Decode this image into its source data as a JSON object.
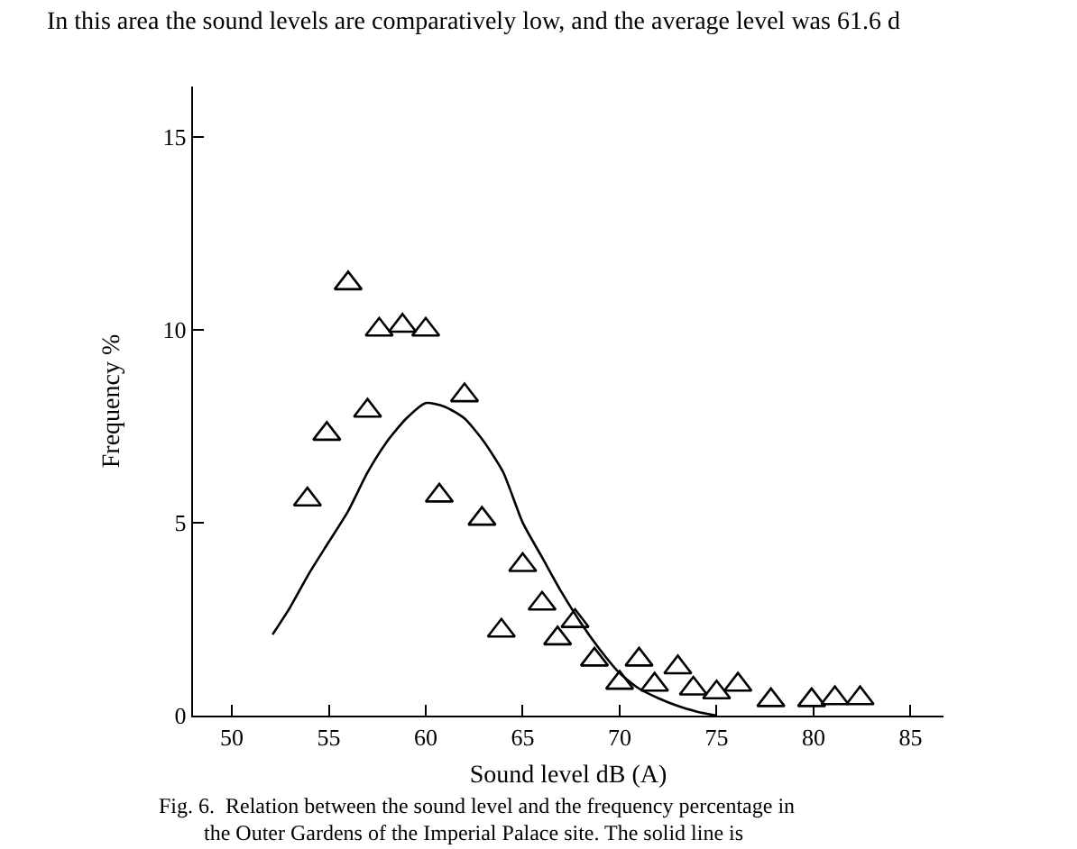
{
  "chart_data": {
    "type": "scatter",
    "xlabel": "Sound level dB (A)",
    "ylabel": "Frequency %",
    "annotations": [
      "In this area the sound levels are comparatively low, and the average level was 61.6 d",
      "Fig. 6.  Relation between the sound level and the frequency percentage in",
      "the Outer Gardens of the Imperial Palace site. The solid line is"
    ],
    "xlim": [
      48,
      86.7
    ],
    "xticks": [
      50,
      55,
      60,
      65,
      70,
      75,
      80,
      85
    ],
    "ylim": [
      0,
      16.3
    ],
    "yticks": [
      0,
      5,
      10,
      15
    ],
    "grid": false,
    "series": [
      {
        "marker": "triangle",
        "color": "#000000",
        "x": [
          53.9,
          54.9,
          56.0,
          57.0,
          57.6,
          58.8,
          60.0,
          60.7,
          62.0,
          62.9,
          63.9,
          65.0,
          66.0,
          66.8,
          67.7,
          68.7,
          70.0,
          71.0,
          71.8,
          73.0,
          73.8,
          75.0,
          76.1,
          77.8,
          79.9,
          81.1,
          82.4
        ],
        "values": [
          5.6,
          7.3,
          11.2,
          7.9,
          10.0,
          10.1,
          10.0,
          5.7,
          8.3,
          5.1,
          2.2,
          3.9,
          2.9,
          2.0,
          2.45,
          1.45,
          0.85,
          1.45,
          0.8,
          1.25,
          0.7,
          0.6,
          0.8,
          0.4,
          0.4,
          0.45,
          0.45
        ]
      },
      {
        "type": "line",
        "marker": "none",
        "line_style": "solid",
        "color": "#000000",
        "x": [
          52.1,
          53,
          54,
          55,
          56,
          57,
          58,
          59,
          60,
          61,
          62,
          63,
          64,
          65,
          66,
          67,
          68,
          69,
          70,
          71,
          72,
          73,
          74,
          75
        ],
        "values": [
          2.1,
          2.8,
          3.7,
          4.5,
          5.3,
          6.3,
          7.1,
          7.7,
          8.1,
          8.0,
          7.7,
          7.1,
          6.3,
          5.0,
          4.1,
          3.2,
          2.4,
          1.7,
          1.1,
          0.7,
          0.45,
          0.25,
          0.1,
          0
        ]
      }
    ]
  }
}
